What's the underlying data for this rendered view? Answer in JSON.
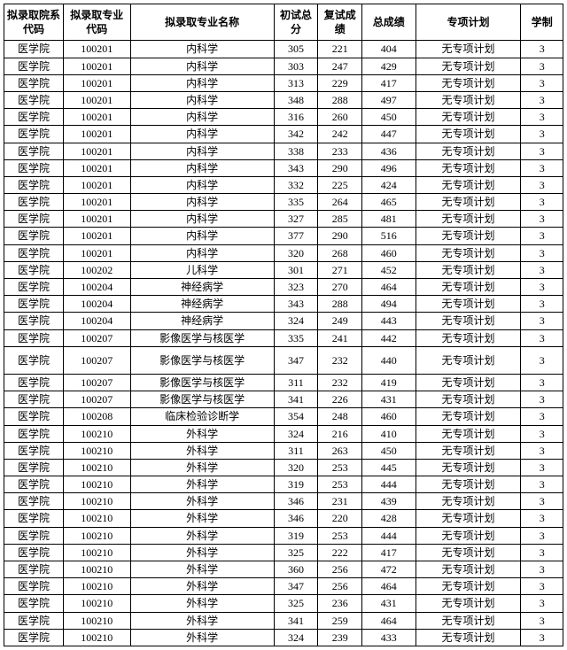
{
  "table": {
    "columns": [
      "拟录取院系代码",
      "拟录取专业代码",
      "拟录取专业名称",
      "初试总分",
      "复试成绩",
      "总成绩",
      "专项计划",
      "学制"
    ],
    "col_classes": [
      "col0",
      "col1",
      "col2",
      "col3",
      "col4",
      "col5",
      "col6",
      "col7"
    ],
    "rows": [
      {
        "c": [
          "医学院",
          "100201",
          "内科学",
          "305",
          "221",
          "404",
          "无专项计划",
          "3"
        ]
      },
      {
        "c": [
          "医学院",
          "100201",
          "内科学",
          "303",
          "247",
          "429",
          "无专项计划",
          "3"
        ]
      },
      {
        "c": [
          "医学院",
          "100201",
          "内科学",
          "313",
          "229",
          "417",
          "无专项计划",
          "3"
        ]
      },
      {
        "c": [
          "医学院",
          "100201",
          "内科学",
          "348",
          "288",
          "497",
          "无专项计划",
          "3"
        ]
      },
      {
        "c": [
          "医学院",
          "100201",
          "内科学",
          "316",
          "260",
          "450",
          "无专项计划",
          "3"
        ]
      },
      {
        "c": [
          "医学院",
          "100201",
          "内科学",
          "342",
          "242",
          "447",
          "无专项计划",
          "3"
        ]
      },
      {
        "c": [
          "医学院",
          "100201",
          "内科学",
          "338",
          "233",
          "436",
          "无专项计划",
          "3"
        ]
      },
      {
        "c": [
          "医学院",
          "100201",
          "内科学",
          "343",
          "290",
          "496",
          "无专项计划",
          "3"
        ]
      },
      {
        "c": [
          "医学院",
          "100201",
          "内科学",
          "332",
          "225",
          "424",
          "无专项计划",
          "3"
        ]
      },
      {
        "c": [
          "医学院",
          "100201",
          "内科学",
          "335",
          "264",
          "465",
          "无专项计划",
          "3"
        ]
      },
      {
        "c": [
          "医学院",
          "100201",
          "内科学",
          "327",
          "285",
          "481",
          "无专项计划",
          "3"
        ]
      },
      {
        "c": [
          "医学院",
          "100201",
          "内科学",
          "377",
          "290",
          "516",
          "无专项计划",
          "3"
        ]
      },
      {
        "c": [
          "医学院",
          "100201",
          "内科学",
          "320",
          "268",
          "460",
          "无专项计划",
          "3"
        ]
      },
      {
        "c": [
          "医学院",
          "100202",
          "儿科学",
          "301",
          "271",
          "452",
          "无专项计划",
          "3"
        ]
      },
      {
        "c": [
          "医学院",
          "100204",
          "神经病学",
          "323",
          "270",
          "464",
          "无专项计划",
          "3"
        ]
      },
      {
        "c": [
          "医学院",
          "100204",
          "神经病学",
          "343",
          "288",
          "494",
          "无专项计划",
          "3"
        ]
      },
      {
        "c": [
          "医学院",
          "100204",
          "神经病学",
          "324",
          "249",
          "443",
          "无专项计划",
          "3"
        ]
      },
      {
        "c": [
          "医学院",
          "100207",
          "影像医学与核医学",
          "335",
          "241",
          "442",
          "无专项计划",
          "3"
        ]
      },
      {
        "c": [
          "医学院",
          "100207",
          "影像医学与核医学",
          "347",
          "232",
          "440",
          "无专项计划",
          "3"
        ],
        "tall": true
      },
      {
        "c": [
          "医学院",
          "100207",
          "影像医学与核医学",
          "311",
          "232",
          "419",
          "无专项计划",
          "3"
        ]
      },
      {
        "c": [
          "医学院",
          "100207",
          "影像医学与核医学",
          "341",
          "226",
          "431",
          "无专项计划",
          "3"
        ]
      },
      {
        "c": [
          "医学院",
          "100208",
          "临床检验诊断学",
          "354",
          "248",
          "460",
          "无专项计划",
          "3"
        ]
      },
      {
        "c": [
          "医学院",
          "100210",
          "外科学",
          "324",
          "216",
          "410",
          "无专项计划",
          "3"
        ]
      },
      {
        "c": [
          "医学院",
          "100210",
          "外科学",
          "311",
          "263",
          "450",
          "无专项计划",
          "3"
        ]
      },
      {
        "c": [
          "医学院",
          "100210",
          "外科学",
          "320",
          "253",
          "445",
          "无专项计划",
          "3"
        ]
      },
      {
        "c": [
          "医学院",
          "100210",
          "外科学",
          "319",
          "253",
          "444",
          "无专项计划",
          "3"
        ]
      },
      {
        "c": [
          "医学院",
          "100210",
          "外科学",
          "346",
          "231",
          "439",
          "无专项计划",
          "3"
        ]
      },
      {
        "c": [
          "医学院",
          "100210",
          "外科学",
          "346",
          "220",
          "428",
          "无专项计划",
          "3"
        ]
      },
      {
        "c": [
          "医学院",
          "100210",
          "外科学",
          "319",
          "253",
          "444",
          "无专项计划",
          "3"
        ]
      },
      {
        "c": [
          "医学院",
          "100210",
          "外科学",
          "325",
          "222",
          "417",
          "无专项计划",
          "3"
        ]
      },
      {
        "c": [
          "医学院",
          "100210",
          "外科学",
          "360",
          "256",
          "472",
          "无专项计划",
          "3"
        ]
      },
      {
        "c": [
          "医学院",
          "100210",
          "外科学",
          "347",
          "256",
          "464",
          "无专项计划",
          "3"
        ]
      },
      {
        "c": [
          "医学院",
          "100210",
          "外科学",
          "325",
          "236",
          "431",
          "无专项计划",
          "3"
        ]
      },
      {
        "c": [
          "医学院",
          "100210",
          "外科学",
          "341",
          "259",
          "464",
          "无专项计划",
          "3"
        ]
      },
      {
        "c": [
          "医学院",
          "100210",
          "外科学",
          "324",
          "239",
          "433",
          "无专项计划",
          "3"
        ]
      }
    ]
  }
}
